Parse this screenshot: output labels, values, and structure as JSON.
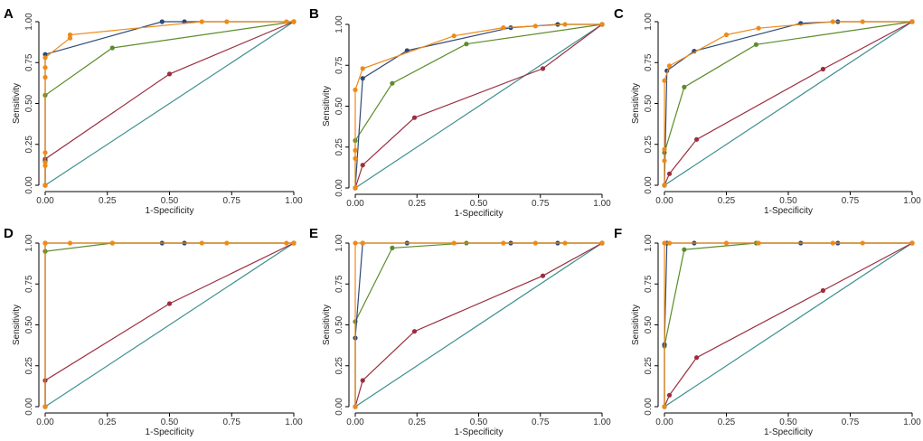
{
  "colors": {
    "reference": "#3f8f8f",
    "navy": "#2e4a78",
    "orange": "#ef8a17",
    "green": "#5b8c2a",
    "maroon": "#9b2d3e"
  },
  "chart_data": [
    {
      "panel": "A",
      "type": "line",
      "xlabel": "1-Specificity",
      "ylabel": "Sensitivity",
      "xlim": [
        0,
        1
      ],
      "ylim": [
        0,
        1
      ],
      "xticks": [
        "0.00",
        "0.25",
        "0.50",
        "0.75",
        "1.00"
      ],
      "yticks": [
        "0.00",
        "0.25",
        "0.50",
        "0.75",
        "1.00"
      ],
      "series": [
        {
          "name": "reference",
          "color": "#3f8f8f",
          "x": [
            0,
            1
          ],
          "y": [
            0,
            1
          ]
        },
        {
          "name": "maroon",
          "color": "#9b2d3e",
          "x": [
            0,
            0,
            0.5,
            1
          ],
          "y": [
            0,
            0.16,
            0.68,
            1
          ]
        },
        {
          "name": "green",
          "color": "#5b8c2a",
          "x": [
            0,
            0,
            0,
            0.27,
            1
          ],
          "y": [
            0,
            0.15,
            0.55,
            0.84,
            1
          ]
        },
        {
          "name": "navy",
          "color": "#2e4a78",
          "x": [
            0,
            0,
            0,
            0.47,
            0.56,
            1
          ],
          "y": [
            0,
            0.15,
            0.8,
            1,
            1,
            1
          ]
        },
        {
          "name": "orange",
          "color": "#ef8a17",
          "x": [
            0,
            0,
            0,
            0,
            0,
            0,
            0,
            0.1,
            0.1,
            0.63,
            0.73,
            0.97,
            1
          ],
          "y": [
            0,
            0.12,
            0.14,
            0.2,
            0.66,
            0.72,
            0.78,
            0.9,
            0.92,
            1,
            1,
            1,
            1
          ]
        }
      ]
    },
    {
      "panel": "B",
      "type": "line",
      "xlabel": "1-Specificity",
      "ylabel": "Sensitivity",
      "xlim": [
        0,
        1
      ],
      "ylim": [
        0,
        1
      ],
      "xticks": [
        "0.00",
        "0.25",
        "0.50",
        "0.75",
        "1.00"
      ],
      "yticks": [
        "0.00",
        "0.25",
        "0.50",
        "0.75",
        "1.00"
      ],
      "series": [
        {
          "name": "reference",
          "color": "#3f8f8f",
          "x": [
            0,
            1
          ],
          "y": [
            0,
            1
          ]
        },
        {
          "name": "maroon",
          "color": "#9b2d3e",
          "x": [
            0,
            0.03,
            0.24,
            0.76,
            1
          ],
          "y": [
            0,
            0.14,
            0.43,
            0.73,
            1
          ]
        },
        {
          "name": "green",
          "color": "#5b8c2a",
          "x": [
            0,
            0,
            0.15,
            0.45,
            1
          ],
          "y": [
            0,
            0.29,
            0.64,
            0.88,
            1
          ]
        },
        {
          "name": "navy",
          "color": "#2e4a78",
          "x": [
            0,
            0.03,
            0.21,
            0.63,
            0.82,
            1
          ],
          "y": [
            0,
            0.67,
            0.84,
            0.98,
            1,
            1
          ]
        },
        {
          "name": "orange",
          "color": "#ef8a17",
          "x": [
            0,
            0,
            0,
            0,
            0.03,
            0.4,
            0.6,
            0.73,
            0.85,
            1
          ],
          "y": [
            0,
            0.18,
            0.23,
            0.6,
            0.73,
            0.93,
            0.98,
            0.99,
            1,
            1
          ]
        }
      ]
    },
    {
      "panel": "C",
      "type": "line",
      "xlabel": "1-Specificity",
      "ylabel": "Sensitivity",
      "xlim": [
        0,
        1
      ],
      "ylim": [
        0,
        1
      ],
      "xticks": [
        "0.00",
        "0.25",
        "0.50",
        "0.75",
        "1.00"
      ],
      "yticks": [
        "0.00",
        "0.25",
        "0.50",
        "0.75",
        "1.00"
      ],
      "series": [
        {
          "name": "reference",
          "color": "#3f8f8f",
          "x": [
            0,
            1
          ],
          "y": [
            0,
            1
          ]
        },
        {
          "name": "maroon",
          "color": "#9b2d3e",
          "x": [
            0,
            0.02,
            0.13,
            0.64,
            1
          ],
          "y": [
            0,
            0.07,
            0.28,
            0.71,
            1
          ]
        },
        {
          "name": "green",
          "color": "#5b8c2a",
          "x": [
            0,
            0,
            0.08,
            0.37,
            1
          ],
          "y": [
            0,
            0.2,
            0.6,
            0.86,
            1
          ]
        },
        {
          "name": "navy",
          "color": "#2e4a78",
          "x": [
            0,
            0.01,
            0.12,
            0.55,
            0.7,
            1
          ],
          "y": [
            0,
            0.7,
            0.82,
            0.99,
            1,
            1
          ]
        },
        {
          "name": "orange",
          "color": "#ef8a17",
          "x": [
            0,
            0,
            0,
            0,
            0.02,
            0.25,
            0.38,
            0.68,
            0.8,
            1
          ],
          "y": [
            0,
            0.15,
            0.22,
            0.64,
            0.73,
            0.92,
            0.96,
            1,
            1,
            1
          ]
        }
      ]
    },
    {
      "panel": "D",
      "type": "line",
      "xlabel": "1-Specificity",
      "ylabel": "Sensitivity",
      "xlim": [
        0,
        1
      ],
      "ylim": [
        0,
        1
      ],
      "xticks": [
        "0.00",
        "0.25",
        "0.50",
        "0.75",
        "1.00"
      ],
      "yticks": [
        "0.00",
        "0.25",
        "0.50",
        "0.75",
        "1.00"
      ],
      "series": [
        {
          "name": "reference",
          "color": "#3f8f8f",
          "x": [
            0,
            1
          ],
          "y": [
            0,
            1
          ]
        },
        {
          "name": "maroon",
          "color": "#9b2d3e",
          "x": [
            0,
            0,
            0.5,
            1
          ],
          "y": [
            0,
            0.16,
            0.63,
            1
          ]
        },
        {
          "name": "green",
          "color": "#5b8c2a",
          "x": [
            0,
            0,
            0.27,
            1
          ],
          "y": [
            0,
            0.95,
            1,
            1
          ]
        },
        {
          "name": "navy",
          "color": "#2e4a78",
          "x": [
            0,
            0,
            0.47,
            0.56,
            1
          ],
          "y": [
            0,
            1,
            1,
            1,
            1
          ]
        },
        {
          "name": "orange",
          "color": "#ef8a17",
          "x": [
            0,
            0,
            0.1,
            0.27,
            0.63,
            0.73,
            0.97,
            1
          ],
          "y": [
            0,
            1,
            1,
            1,
            1,
            1,
            1,
            1
          ]
        }
      ]
    },
    {
      "panel": "E",
      "type": "line",
      "xlabel": "1-Specificity",
      "ylabel": "Sensitivity",
      "xlim": [
        0,
        1
      ],
      "ylim": [
        0,
        1
      ],
      "xticks": [
        "0.00",
        "0.25",
        "0.50",
        "0.75",
        "1.00"
      ],
      "yticks": [
        "0.00",
        "0.25",
        "0.50",
        "0.75",
        "1.00"
      ],
      "series": [
        {
          "name": "reference",
          "color": "#3f8f8f",
          "x": [
            0,
            1
          ],
          "y": [
            0,
            1
          ]
        },
        {
          "name": "maroon",
          "color": "#9b2d3e",
          "x": [
            0,
            0.03,
            0.24,
            0.76,
            1
          ],
          "y": [
            0,
            0.16,
            0.46,
            0.8,
            1
          ]
        },
        {
          "name": "green",
          "color": "#5b8c2a",
          "x": [
            0,
            0,
            0.15,
            0.45,
            1
          ],
          "y": [
            0,
            0.52,
            0.97,
            1,
            1
          ]
        },
        {
          "name": "navy",
          "color": "#2e4a78",
          "x": [
            0,
            0,
            0.03,
            0.21,
            0.63,
            0.82,
            1
          ],
          "y": [
            0,
            0.42,
            1,
            1,
            1,
            1,
            1
          ]
        },
        {
          "name": "orange",
          "color": "#ef8a17",
          "x": [
            0,
            0,
            0.03,
            0.4,
            0.6,
            0.73,
            0.85,
            1
          ],
          "y": [
            0,
            1,
            1,
            1,
            1,
            1,
            1,
            1
          ]
        }
      ]
    },
    {
      "panel": "F",
      "type": "line",
      "xlabel": "1-Specificity",
      "ylabel": "Sensitivity",
      "xlim": [
        0,
        1
      ],
      "ylim": [
        0,
        1
      ],
      "xticks": [
        "0.00",
        "0.25",
        "0.50",
        "0.75",
        "1.00"
      ],
      "yticks": [
        "0.00",
        "0.25",
        "0.50",
        "0.75",
        "1.00"
      ],
      "series": [
        {
          "name": "reference",
          "color": "#3f8f8f",
          "x": [
            0,
            1
          ],
          "y": [
            0,
            1
          ]
        },
        {
          "name": "maroon",
          "color": "#9b2d3e",
          "x": [
            0,
            0.02,
            0.13,
            0.64,
            1
          ],
          "y": [
            0,
            0.07,
            0.3,
            0.71,
            1
          ]
        },
        {
          "name": "green",
          "color": "#5b8c2a",
          "x": [
            0,
            0,
            0.08,
            0.37,
            1
          ],
          "y": [
            0,
            0.37,
            0.96,
            1,
            1
          ]
        },
        {
          "name": "navy",
          "color": "#2e4a78",
          "x": [
            0,
            0,
            0.01,
            0.12,
            0.55,
            0.7,
            1
          ],
          "y": [
            0,
            0.38,
            1,
            1,
            1,
            1,
            1
          ]
        },
        {
          "name": "orange",
          "color": "#ef8a17",
          "x": [
            0,
            0,
            0.02,
            0.25,
            0.38,
            0.68,
            0.8,
            1
          ],
          "y": [
            0,
            1,
            1,
            1,
            1,
            1,
            1,
            1
          ]
        }
      ]
    }
  ]
}
